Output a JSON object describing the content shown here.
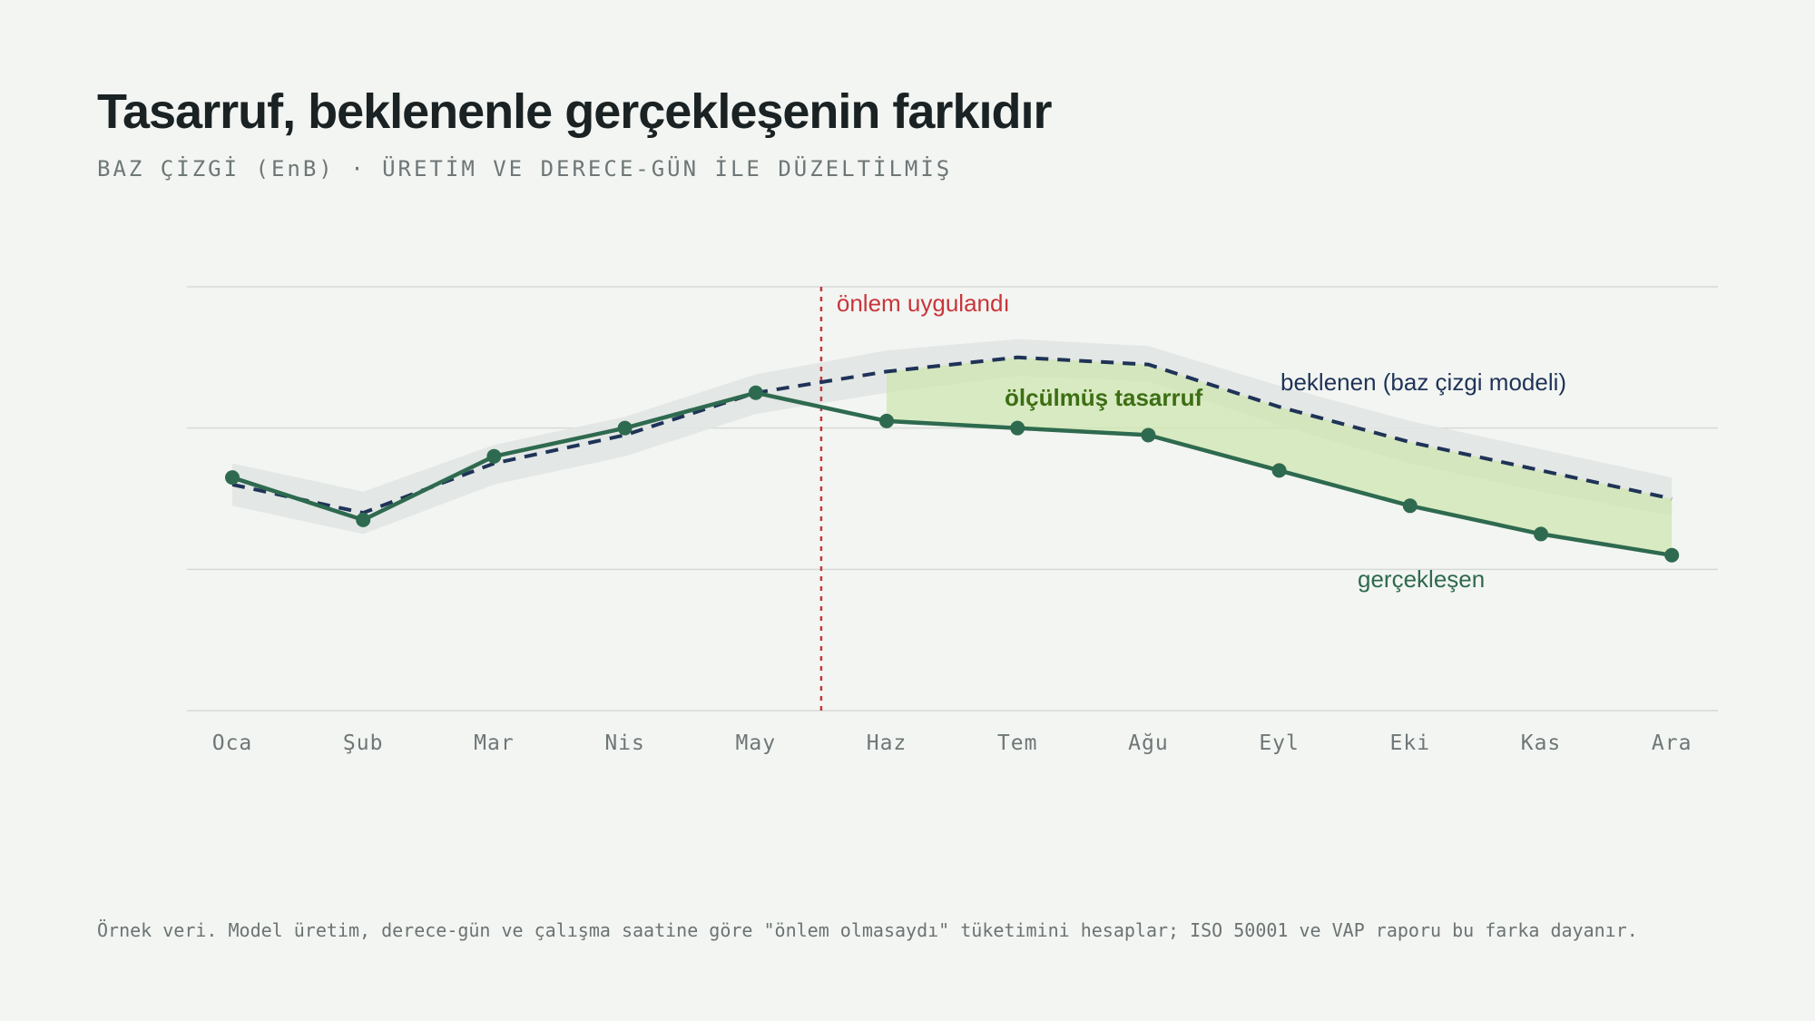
{
  "page": {
    "title": "Tasarruf, beklenenle gerçekleşenin farkıdır",
    "subtitle": "BAZ ÇİZGİ (EnB) · ÜRETİM VE DERECE-GÜN İLE DÜZELTİLMİŞ",
    "footnote": "Örnek veri. Model üretim, derece-gün ve çalışma saatine göre \"önlem olmasaydı\" tüketimini hesaplar; ISO 50001 ve VAP raporu bu farka dayanır."
  },
  "chart_data": {
    "type": "line",
    "categories": [
      "Oca",
      "Şub",
      "Mar",
      "Nis",
      "May",
      "Haz",
      "Tem",
      "Ağu",
      "Eyl",
      "Eki",
      "Kas",
      "Ara"
    ],
    "ylim": [
      0,
      3
    ],
    "grid": true,
    "series": [
      {
        "name": "beklenen (baz çizgi modeli)",
        "style": "dashed",
        "color": "#1f3358",
        "values": [
          1.6,
          1.4,
          1.75,
          1.95,
          2.25,
          2.4,
          2.5,
          2.45,
          2.15,
          1.9,
          1.7,
          1.5
        ],
        "band": {
          "lower": [
            1.45,
            1.25,
            1.6,
            1.8,
            2.1,
            2.25,
            2.37,
            2.33,
            2.02,
            1.75,
            1.55,
            1.38
          ],
          "upper": [
            1.75,
            1.55,
            1.88,
            2.08,
            2.38,
            2.55,
            2.63,
            2.58,
            2.3,
            2.05,
            1.85,
            1.65
          ]
        }
      },
      {
        "name": "gerçekleşen",
        "style": "solid",
        "color": "#2e6a4f",
        "values": [
          1.65,
          1.35,
          1.8,
          2.0,
          2.25,
          2.05,
          2.0,
          1.95,
          1.7,
          1.45,
          1.25,
          1.1
        ]
      }
    ],
    "intervention": {
      "label": "önlem uygulandı",
      "after_index": 4.5,
      "color": "#c8353a"
    },
    "savings_area": {
      "label": "ölçülmüş tasarruf",
      "from_index": 5,
      "to_index": 11,
      "color": "#cfe5b0"
    },
    "colors": {
      "band": "#e1e5e3",
      "grid": "#d6dad7",
      "savings_label": "#3d6e14",
      "axis_text": "#6e7777"
    }
  }
}
